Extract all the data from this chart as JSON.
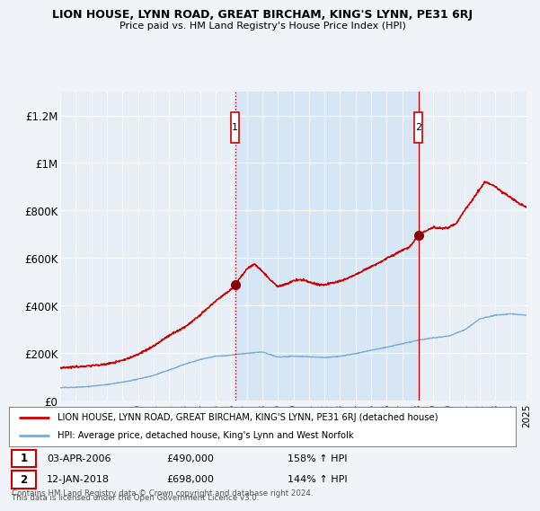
{
  "title": "LION HOUSE, LYNN ROAD, GREAT BIRCHAM, KING'S LYNN, PE31 6RJ",
  "subtitle": "Price paid vs. HM Land Registry's House Price Index (HPI)",
  "xmin": 1995,
  "xmax": 2025,
  "ymin": 0,
  "ymax": 1300000,
  "yticks": [
    0,
    200000,
    400000,
    600000,
    800000,
    1000000,
    1200000
  ],
  "ytick_labels": [
    "£0",
    "£200K",
    "£400K",
    "£600K",
    "£800K",
    "£1M",
    "£1.2M"
  ],
  "xticks": [
    1995,
    1996,
    1997,
    1998,
    1999,
    2000,
    2001,
    2002,
    2003,
    2004,
    2005,
    2006,
    2007,
    2008,
    2009,
    2010,
    2011,
    2012,
    2013,
    2014,
    2015,
    2016,
    2017,
    2018,
    2019,
    2020,
    2021,
    2022,
    2023,
    2024,
    2025
  ],
  "hpi_color": "#7aadd4",
  "price_color": "#cc0000",
  "shade_color": "#d0e4f5",
  "marker1_x": 2006.25,
  "marker1_y": 490000,
  "marker1_label": "1",
  "marker1_date": "03-APR-2006",
  "marker1_price": "£490,000",
  "marker1_hpi": "158% ↑ HPI",
  "marker2_x": 2018.05,
  "marker2_y": 698000,
  "marker2_label": "2",
  "marker2_date": "12-JAN-2018",
  "marker2_price": "£698,000",
  "marker2_hpi": "144% ↑ HPI",
  "legend_line1": "LION HOUSE, LYNN ROAD, GREAT BIRCHAM, KING'S LYNN, PE31 6RJ (detached house)",
  "legend_line2": "HPI: Average price, detached house, King's Lynn and West Norfolk",
  "footer1": "Contains HM Land Registry data © Crown copyright and database right 2024.",
  "footer2": "This data is licensed under the Open Government Licence v3.0.",
  "background_color": "#f0f4f8",
  "plot_bg_color": "#e8eef5"
}
